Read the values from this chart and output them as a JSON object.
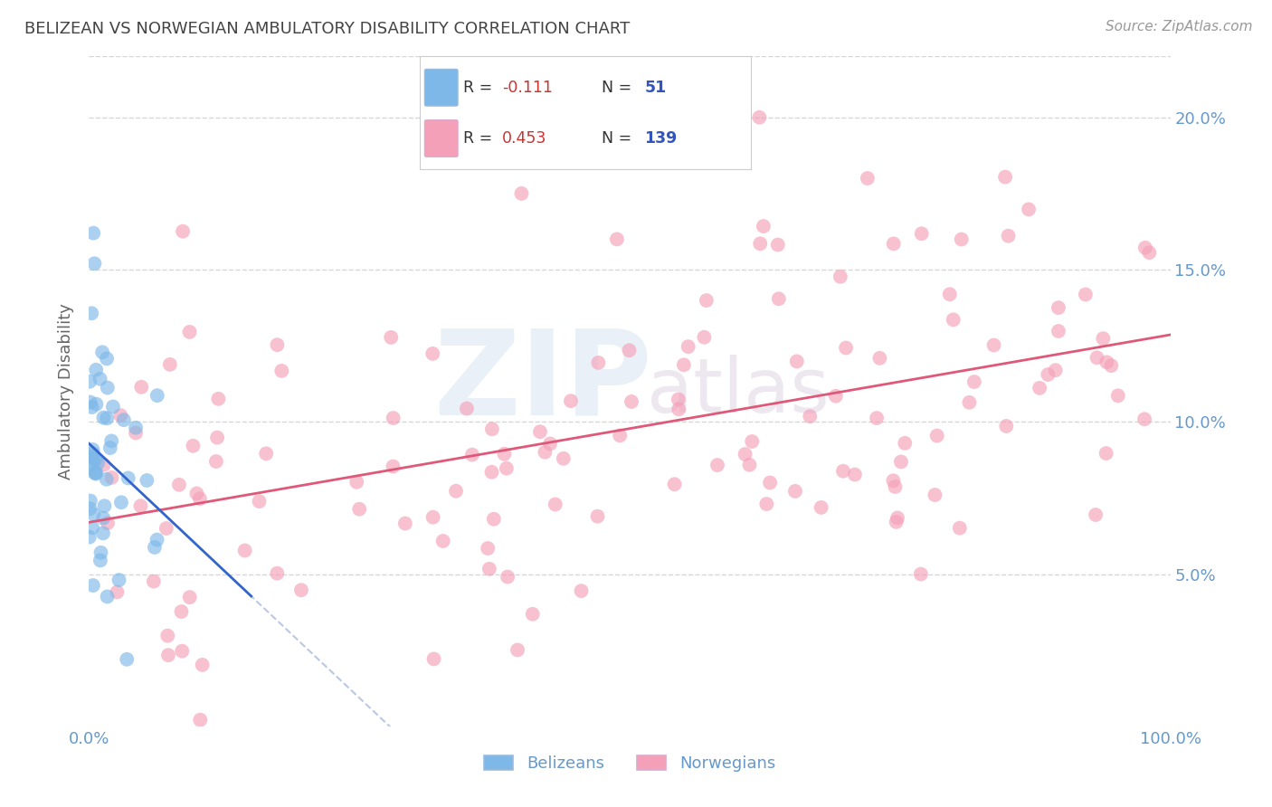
{
  "title": "BELIZEAN VS NORWEGIAN AMBULATORY DISABILITY CORRELATION CHART",
  "source": "Source: ZipAtlas.com",
  "ylabel_left": "Ambulatory Disability",
  "belizean_color": "#7eb8e8",
  "norwegian_color": "#f4a0b8",
  "belizean_R": -0.111,
  "belizean_N": 51,
  "norwegian_R": 0.453,
  "norwegian_N": 139,
  "legend_label_1": "Belizeans",
  "legend_label_2": "Norwegians",
  "watermark_zip": "ZIP",
  "watermark_atlas": "atlas",
  "axis_color": "#6699cc",
  "grid_color": "#cccccc",
  "background_color": "#ffffff",
  "blue_line_color": "#3366cc",
  "pink_line_color": "#e05878",
  "dashed_line_color": "#aabbdd",
  "title_color": "#444444",
  "source_color": "#999999",
  "yticks": [
    0.05,
    0.1,
    0.15,
    0.2
  ],
  "ytick_labels": [
    "5.0%",
    "10.0%",
    "15.0%",
    "20.0%"
  ],
  "xtick_labels": [
    "0.0%",
    "100.0%"
  ],
  "xtick_vals": [
    0.0,
    1.0
  ],
  "xlim": [
    0.0,
    1.0
  ],
  "ylim": [
    0.0,
    0.22
  ]
}
